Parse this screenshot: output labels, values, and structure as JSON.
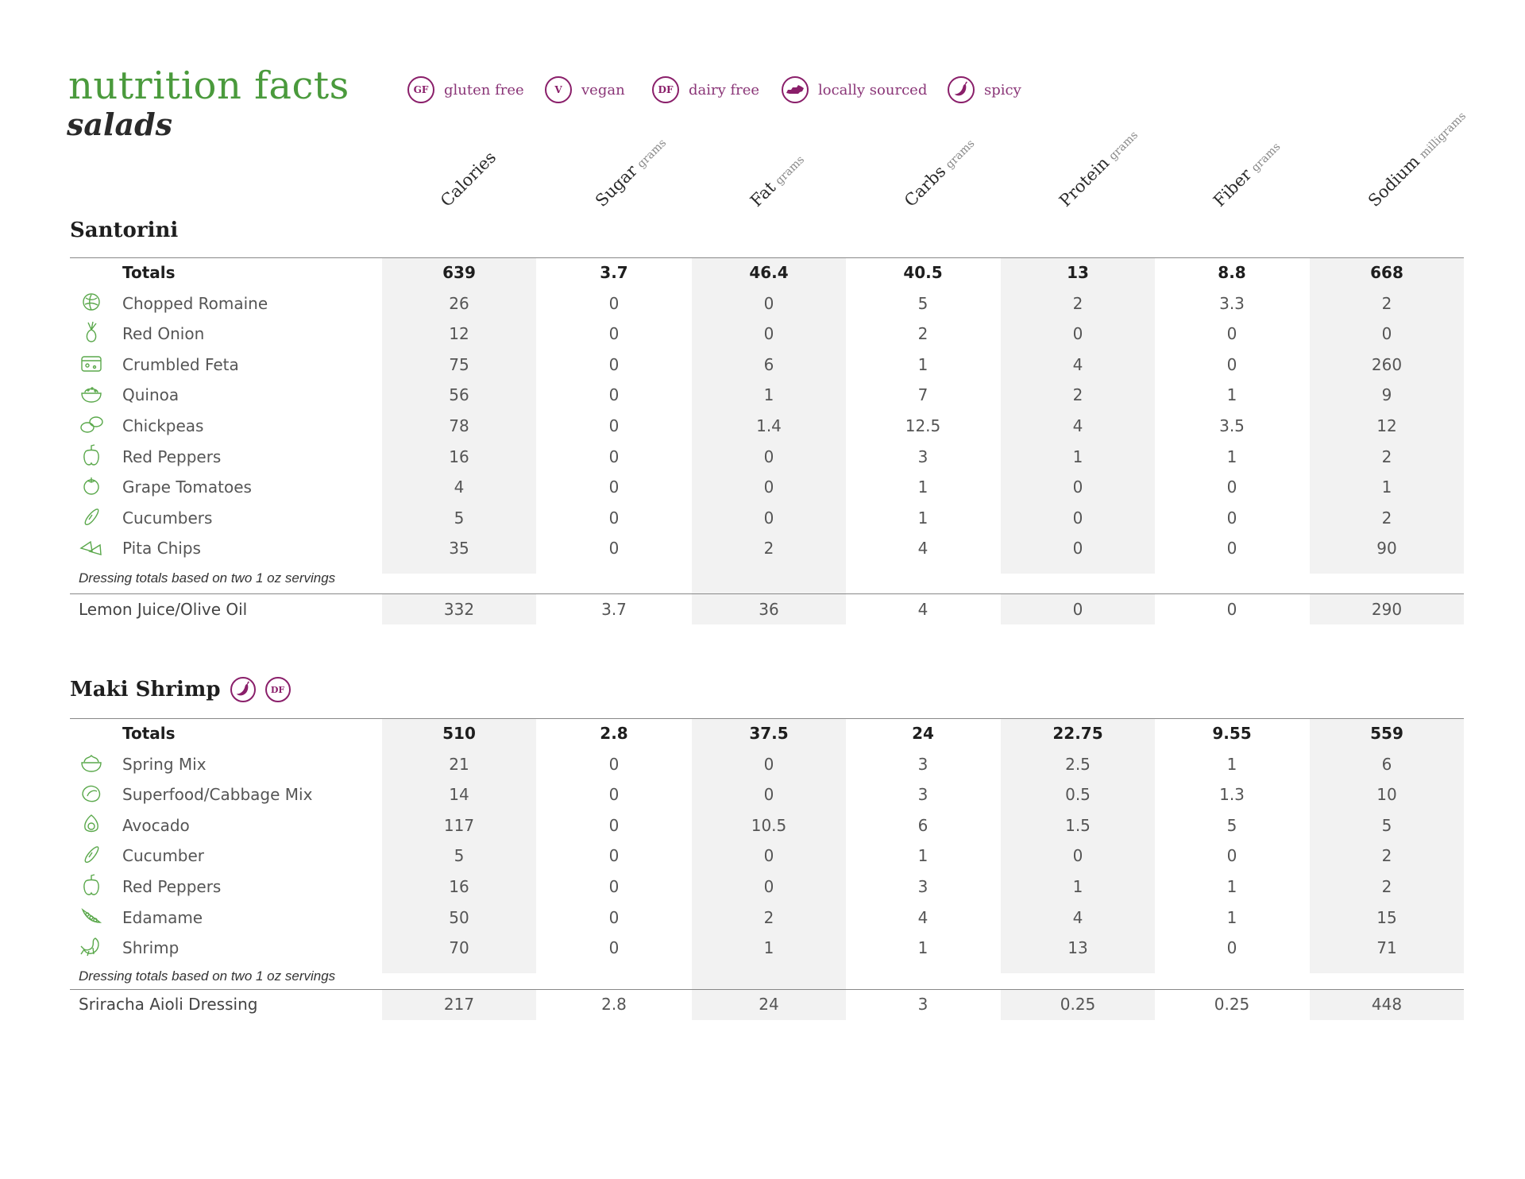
{
  "header": {
    "title": "nutrition facts",
    "subtitle": "salads"
  },
  "legend": [
    {
      "badge": "GF",
      "label": "gluten free"
    },
    {
      "badge": "V",
      "label": "vegan"
    },
    {
      "badge": "DF",
      "label": "dairy free"
    },
    {
      "badge": "",
      "icon": "kentucky-state-icon",
      "label": "locally sourced"
    },
    {
      "badge": "",
      "icon": "chili-pepper-icon",
      "label": "spicy"
    }
  ],
  "columns": [
    {
      "name": "Calories",
      "unit": ""
    },
    {
      "name": "Sugar",
      "unit": "grams"
    },
    {
      "name": "Fat",
      "unit": "grams"
    },
    {
      "name": "Carbs",
      "unit": "grams"
    },
    {
      "name": "Protein",
      "unit": "grams"
    },
    {
      "name": "Fiber",
      "unit": "grams"
    },
    {
      "name": "Sodium",
      "unit": "milligrams"
    }
  ],
  "colors": {
    "green": "#4a9a3c",
    "purple": "#8a1f6a",
    "shade": "#f2f2f2"
  },
  "salads": [
    {
      "name": "Santorini",
      "tags": [],
      "totals_label": "Totals",
      "totals": [
        "639",
        "3.7",
        "46.4",
        "40.5",
        "13",
        "8.8",
        "668"
      ],
      "ingredients": [
        {
          "name": "Chopped Romaine",
          "icon": "lettuce-icon",
          "values": [
            "26",
            "0",
            "0",
            "5",
            "2",
            "3.3",
            "2"
          ]
        },
        {
          "name": "Red Onion",
          "icon": "onion-icon",
          "values": [
            "12",
            "0",
            "0",
            "2",
            "0",
            "0",
            "0"
          ]
        },
        {
          "name": "Crumbled Feta",
          "icon": "cheese-icon",
          "values": [
            "75",
            "0",
            "6",
            "1",
            "4",
            "0",
            "260"
          ]
        },
        {
          "name": "Quinoa",
          "icon": "grain-bowl-icon",
          "values": [
            "56",
            "0",
            "1",
            "7",
            "2",
            "1",
            "9"
          ]
        },
        {
          "name": "Chickpeas",
          "icon": "chickpea-icon",
          "values": [
            "78",
            "0",
            "1.4",
            "12.5",
            "4",
            "3.5",
            "12"
          ]
        },
        {
          "name": "Red Peppers",
          "icon": "pepper-icon",
          "values": [
            "16",
            "0",
            "0",
            "3",
            "1",
            "1",
            "2"
          ]
        },
        {
          "name": "Grape Tomatoes",
          "icon": "tomato-icon",
          "values": [
            "4",
            "0",
            "0",
            "1",
            "0",
            "0",
            "1"
          ]
        },
        {
          "name": "Cucumbers",
          "icon": "cucumber-icon",
          "values": [
            "5",
            "0",
            "0",
            "1",
            "0",
            "0",
            "2"
          ]
        },
        {
          "name": "Pita Chips",
          "icon": "pita-chip-icon",
          "values": [
            "35",
            "0",
            "2",
            "4",
            "0",
            "0",
            "90"
          ]
        }
      ],
      "dressing_note": "Dressing totals based on two 1 oz servings",
      "dressing": {
        "name": "Lemon Juice/Olive Oil",
        "values": [
          "332",
          "3.7",
          "36",
          "4",
          "0",
          "0",
          "290"
        ]
      }
    },
    {
      "name": "Maki Shrimp",
      "tags": [
        {
          "badge": "",
          "icon": "chili-pepper-icon"
        },
        {
          "badge": "DF"
        }
      ],
      "totals_label": "Totals",
      "totals": [
        "510",
        "2.8",
        "37.5",
        "24",
        "22.75",
        "9.55",
        "559"
      ],
      "ingredients": [
        {
          "name": "Spring Mix",
          "icon": "salad-bowl-icon",
          "values": [
            "21",
            "0",
            "0",
            "3",
            "2.5",
            "1",
            "6"
          ]
        },
        {
          "name": "Superfood/Cabbage Mix",
          "icon": "cabbage-icon",
          "values": [
            "14",
            "0",
            "0",
            "3",
            "0.5",
            "1.3",
            "10"
          ]
        },
        {
          "name": "Avocado",
          "icon": "avocado-icon",
          "values": [
            "117",
            "0",
            "10.5",
            "6",
            "1.5",
            "5",
            "5"
          ]
        },
        {
          "name": "Cucumber",
          "icon": "cucumber-icon",
          "values": [
            "5",
            "0",
            "0",
            "1",
            "0",
            "0",
            "2"
          ]
        },
        {
          "name": "Red Peppers",
          "icon": "pepper-icon",
          "values": [
            "16",
            "0",
            "0",
            "3",
            "1",
            "1",
            "2"
          ]
        },
        {
          "name": "Edamame",
          "icon": "edamame-icon",
          "values": [
            "50",
            "0",
            "2",
            "4",
            "4",
            "1",
            "15"
          ]
        },
        {
          "name": "Shrimp",
          "icon": "shrimp-icon",
          "values": [
            "70",
            "0",
            "1",
            "1",
            "13",
            "0",
            "71"
          ]
        }
      ],
      "dressing_note": "Dressing totals based on two 1 oz servings",
      "dressing": {
        "name": "Sriracha Aioli Dressing",
        "values": [
          "217",
          "2.8",
          "24",
          "3",
          "0.25",
          "0.25",
          "448"
        ]
      }
    }
  ]
}
